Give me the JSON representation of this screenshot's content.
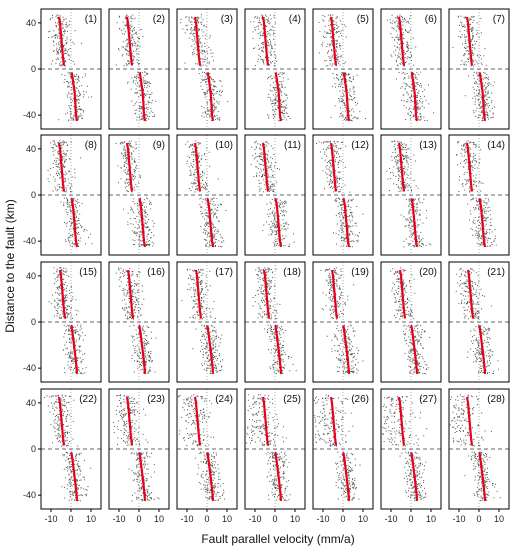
{
  "chart_data": {
    "type": "scatter",
    "layout": "small-multiples 4 rows x 7 columns",
    "panel_labels": [
      "(1)",
      "(2)",
      "(3)",
      "(4)",
      "(5)",
      "(6)",
      "(7)",
      "(8)",
      "(9)",
      "(10)",
      "(11)",
      "(12)",
      "(13)",
      "(14)",
      "(15)",
      "(16)",
      "(17)",
      "(18)",
      "(19)",
      "(20)",
      "(21)",
      "(22)",
      "(23)",
      "(24)",
      "(25)",
      "(26)",
      "(27)",
      "(28)"
    ],
    "xlabel": "Fault parallel velocity (mm/a)",
    "ylabel": "Distance to the fault (km)",
    "xlim": [
      -15,
      15
    ],
    "ylim": [
      -52,
      52
    ],
    "xticks": [
      -10,
      0,
      10
    ],
    "xtick_labels": [
      "-10",
      "0",
      "10"
    ],
    "yticks": [
      -40,
      0,
      40
    ],
    "ytick_labels": [
      "-40",
      "0",
      "40"
    ],
    "reference_lines": {
      "horizontal_dashed_at_y": 0,
      "vertical_dotted_at_x": 0
    },
    "series_colors": {
      "points": "#555555",
      "profile": "#e8001c"
    },
    "profile": {
      "y": [
        -45,
        -40,
        -30,
        -20,
        -10,
        -3,
        3,
        10,
        20,
        30,
        40,
        45
      ],
      "x_row1": [
        3.0,
        2.5,
        2.2,
        1.8,
        1.0,
        0.4,
        -3.5,
        -4.0,
        -4.5,
        -5.0,
        -5.5,
        -6.0
      ],
      "x_row2": [
        3.0,
        2.5,
        2.0,
        1.5,
        1.0,
        0.3,
        -3.5,
        -4.0,
        -4.5,
        -5.0,
        -5.5,
        -6.0
      ],
      "x_row3": [
        3.0,
        2.8,
        2.2,
        1.5,
        0.8,
        0.2,
        -3.0,
        -3.5,
        -4.0,
        -4.5,
        -5.0,
        -5.5
      ],
      "x_row4": [
        3.0,
        2.8,
        2.2,
        1.5,
        0.8,
        0.2,
        -3.5,
        -4.0,
        -4.5,
        -5.0,
        -5.5,
        -6.0
      ]
    }
  }
}
